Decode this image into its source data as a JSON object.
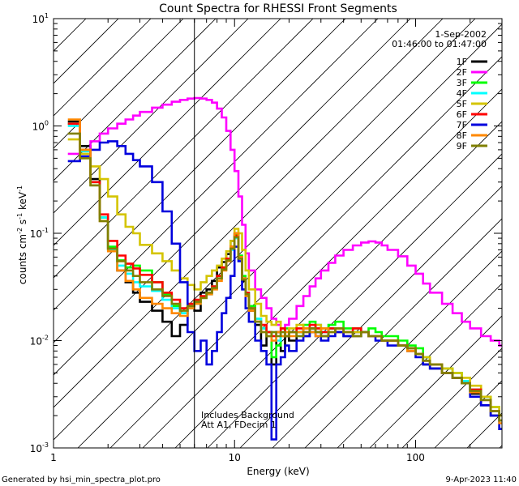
{
  "chart_data": {
    "type": "line",
    "title": "Count Spectra for RHESSI Front Segments",
    "xlabel": "Energy (keV)",
    "ylabel_main": "counts cm",
    "ylabel_exp1": "-2",
    "ylabel_mid": " s",
    "ylabel_exp2": "-1",
    "ylabel_end": " keV",
    "ylabel_exp3": "-1",
    "x_scale": "log",
    "y_scale": "log",
    "xlim": [
      1,
      300
    ],
    "ylim": [
      0.001,
      10
    ],
    "x_ticks": [
      {
        "value": 1,
        "label": "1"
      },
      {
        "value": 10,
        "label": "10"
      },
      {
        "value": 100,
        "label": "100"
      }
    ],
    "y_ticks": [
      {
        "value": 0.001,
        "mant": "10",
        "exp": "-3"
      },
      {
        "value": 0.01,
        "mant": "10",
        "exp": "-2"
      },
      {
        "value": 0.1,
        "mant": "10",
        "exp": "-1"
      },
      {
        "value": 1,
        "mant": "10",
        "exp": "0"
      },
      {
        "value": 10,
        "mant": "10",
        "exp": "1"
      }
    ],
    "date": "1-Sep-2002",
    "time_range": "01:46:00 to 01:47:00",
    "hatched_region": {
      "x_from": 1,
      "x_to": 6
    },
    "vertical_line_x": 6,
    "annotation_line1": "Includes Background",
    "annotation_line2": "Att A1, FDecim 1",
    "legend_position": "top-right",
    "energy_bins_keV": [
      1.2,
      1.4,
      1.6,
      1.8,
      2.0,
      2.25,
      2.5,
      2.75,
      3.0,
      3.5,
      4.0,
      4.5,
      5.0,
      5.5,
      6.0,
      6.5,
      7.0,
      7.5,
      8.0,
      8.5,
      9.0,
      9.5,
      10.0,
      10.5,
      11.0,
      11.5,
      12.0,
      13.0,
      14.0,
      15.0,
      16.0,
      17.0,
      18.0,
      19.0,
      20.0,
      22.0,
      24.0,
      26.0,
      28.0,
      30.0,
      33.0,
      36.0,
      40.0,
      45.0,
      50.0,
      55.0,
      60.0,
      65.0,
      70.0,
      80.0,
      90.0,
      100.0,
      110.0,
      120.0,
      140.0,
      160.0,
      180.0,
      200.0,
      230.0,
      260.0,
      290.0
    ],
    "series": [
      {
        "name": "1F",
        "color": "#000000",
        "values": [
          1.1,
          0.65,
          0.32,
          0.14,
          0.072,
          0.045,
          0.035,
          0.028,
          0.023,
          0.019,
          0.015,
          0.011,
          0.014,
          0.021,
          0.019,
          0.028,
          0.03,
          0.036,
          0.048,
          0.054,
          0.064,
          0.085,
          0.1,
          0.058,
          0.036,
          0.026,
          0.019,
          0.014,
          0.009,
          0.012,
          0.006,
          0.012,
          0.008,
          0.011,
          0.01,
          0.012,
          0.011,
          0.013,
          0.012,
          0.011,
          0.013,
          0.012,
          0.011,
          0.012,
          0.012,
          0.011,
          0.011,
          0.01,
          0.01,
          0.009,
          0.008,
          0.0075,
          0.006,
          0.0055,
          0.005,
          0.0045,
          0.004,
          0.0032,
          0.0025,
          0.002,
          0.0015
        ]
      },
      {
        "name": "2F",
        "color": "#ff00ff",
        "values": [
          0.55,
          0.6,
          0.72,
          0.85,
          0.95,
          1.05,
          1.15,
          1.25,
          1.35,
          1.48,
          1.58,
          1.68,
          1.75,
          1.8,
          1.82,
          1.8,
          1.75,
          1.65,
          1.45,
          1.2,
          0.9,
          0.6,
          0.38,
          0.22,
          0.12,
          0.065,
          0.045,
          0.03,
          0.025,
          0.02,
          0.016,
          0.014,
          0.013,
          0.014,
          0.016,
          0.021,
          0.026,
          0.032,
          0.038,
          0.045,
          0.053,
          0.062,
          0.07,
          0.077,
          0.082,
          0.084,
          0.082,
          0.077,
          0.07,
          0.061,
          0.05,
          0.042,
          0.034,
          0.028,
          0.022,
          0.018,
          0.015,
          0.013,
          0.011,
          0.01,
          0.009
        ]
      },
      {
        "name": "3F",
        "color": "#00ff00",
        "values": [
          1.05,
          0.6,
          0.3,
          0.14,
          0.075,
          0.056,
          0.048,
          0.05,
          0.045,
          0.035,
          0.027,
          0.021,
          0.018,
          0.021,
          0.023,
          0.025,
          0.028,
          0.032,
          0.04,
          0.048,
          0.058,
          0.075,
          0.098,
          0.062,
          0.04,
          0.028,
          0.021,
          0.016,
          0.013,
          0.012,
          0.007,
          0.009,
          0.011,
          0.013,
          0.012,
          0.012,
          0.014,
          0.015,
          0.013,
          0.012,
          0.014,
          0.015,
          0.013,
          0.013,
          0.012,
          0.013,
          0.012,
          0.011,
          0.011,
          0.01,
          0.009,
          0.0085,
          0.007,
          0.006,
          0.0055,
          0.005,
          0.0042,
          0.0035,
          0.003,
          0.0024,
          0.0018
        ]
      },
      {
        "name": "4F",
        "color": "#00ffff",
        "values": [
          1.0,
          0.58,
          0.28,
          0.14,
          0.07,
          0.05,
          0.042,
          0.035,
          0.032,
          0.029,
          0.024,
          0.02,
          0.018,
          0.02,
          0.022,
          0.025,
          0.027,
          0.031,
          0.038,
          0.046,
          0.056,
          0.07,
          0.09,
          0.058,
          0.038,
          0.028,
          0.02,
          0.016,
          0.013,
          0.011,
          0.012,
          0.01,
          0.012,
          0.011,
          0.012,
          0.011,
          0.013,
          0.012,
          0.014,
          0.012,
          0.013,
          0.012,
          0.012,
          0.011,
          0.012,
          0.011,
          0.011,
          0.01,
          0.01,
          0.009,
          0.0085,
          0.0075,
          0.0065,
          0.006,
          0.005,
          0.0045,
          0.0042,
          0.0035,
          0.0028,
          0.0022,
          0.0018
        ]
      },
      {
        "name": "5F",
        "color": "#d4c400",
        "values": [
          0.75,
          0.55,
          0.42,
          0.32,
          0.22,
          0.15,
          0.115,
          0.1,
          0.078,
          0.065,
          0.055,
          0.045,
          0.038,
          0.033,
          0.03,
          0.035,
          0.04,
          0.045,
          0.05,
          0.058,
          0.068,
          0.085,
          0.11,
          0.1,
          0.07,
          0.045,
          0.03,
          0.022,
          0.017,
          0.015,
          0.014,
          0.015,
          0.013,
          0.012,
          0.013,
          0.014,
          0.013,
          0.012,
          0.014,
          0.013,
          0.012,
          0.013,
          0.012,
          0.012,
          0.012,
          0.011,
          0.011,
          0.01,
          0.01,
          0.009,
          0.0085,
          0.0075,
          0.007,
          0.006,
          0.0055,
          0.005,
          0.0045,
          0.0038,
          0.003,
          0.0024,
          0.002
        ]
      },
      {
        "name": "6F",
        "color": "#ff0000",
        "values": [
          1.05,
          0.6,
          0.3,
          0.15,
          0.085,
          0.062,
          0.052,
          0.047,
          0.041,
          0.035,
          0.028,
          0.024,
          0.02,
          0.022,
          0.024,
          0.026,
          0.028,
          0.032,
          0.04,
          0.048,
          0.058,
          0.075,
          0.095,
          0.06,
          0.038,
          0.028,
          0.02,
          0.015,
          0.014,
          0.012,
          0.011,
          0.012,
          0.013,
          0.011,
          0.012,
          0.013,
          0.012,
          0.014,
          0.013,
          0.012,
          0.013,
          0.012,
          0.012,
          0.013,
          0.012,
          0.011,
          0.011,
          0.01,
          0.01,
          0.009,
          0.0085,
          0.0075,
          0.0065,
          0.006,
          0.005,
          0.0045,
          0.004,
          0.0035,
          0.0028,
          0.0022,
          0.0018
        ]
      },
      {
        "name": "7F",
        "color": "#0000dd",
        "values": [
          0.47,
          0.52,
          0.6,
          0.7,
          0.72,
          0.65,
          0.55,
          0.48,
          0.42,
          0.3,
          0.16,
          0.08,
          0.035,
          0.012,
          0.008,
          0.01,
          0.006,
          0.008,
          0.012,
          0.018,
          0.025,
          0.04,
          0.075,
          0.055,
          0.03,
          0.02,
          0.015,
          0.01,
          0.008,
          0.006,
          0.0012,
          0.006,
          0.007,
          0.009,
          0.008,
          0.01,
          0.011,
          0.012,
          0.011,
          0.01,
          0.011,
          0.012,
          0.011,
          0.011,
          0.012,
          0.011,
          0.01,
          0.01,
          0.009,
          0.009,
          0.008,
          0.007,
          0.006,
          0.0055,
          0.005,
          0.0045,
          0.004,
          0.003,
          0.0025,
          0.002,
          0.0015
        ]
      },
      {
        "name": "8F",
        "color": "#ff8800",
        "values": [
          1.15,
          0.6,
          0.28,
          0.13,
          0.068,
          0.045,
          0.036,
          0.03,
          0.025,
          0.022,
          0.02,
          0.018,
          0.017,
          0.02,
          0.022,
          0.025,
          0.027,
          0.03,
          0.036,
          0.045,
          0.055,
          0.075,
          0.1,
          0.06,
          0.038,
          0.026,
          0.019,
          0.015,
          0.012,
          0.011,
          0.01,
          0.012,
          0.011,
          0.012,
          0.011,
          0.012,
          0.013,
          0.012,
          0.011,
          0.013,
          0.012,
          0.013,
          0.012,
          0.011,
          0.012,
          0.011,
          0.011,
          0.01,
          0.01,
          0.009,
          0.008,
          0.0075,
          0.0065,
          0.006,
          0.005,
          0.0045,
          0.004,
          0.0033,
          0.0028,
          0.0022,
          0.0017
        ]
      },
      {
        "name": "9F",
        "color": "#808000",
        "values": [
          0.85,
          0.5,
          0.28,
          0.13,
          0.072,
          0.055,
          0.045,
          0.04,
          0.035,
          0.03,
          0.026,
          0.022,
          0.019,
          0.021,
          0.023,
          0.025,
          0.028,
          0.031,
          0.038,
          0.046,
          0.056,
          0.072,
          0.092,
          0.058,
          0.037,
          0.027,
          0.02,
          0.015,
          0.012,
          0.011,
          0.012,
          0.011,
          0.012,
          0.011,
          0.012,
          0.011,
          0.012,
          0.013,
          0.012,
          0.011,
          0.012,
          0.013,
          0.012,
          0.011,
          0.012,
          0.011,
          0.011,
          0.01,
          0.01,
          0.009,
          0.0085,
          0.0075,
          0.0065,
          0.006,
          0.005,
          0.0045,
          0.004,
          0.0034,
          0.0028,
          0.0022,
          0.0018
        ]
      }
    ]
  },
  "footer": {
    "generated_by": "Generated by hsi_min_spectra_plot.pro",
    "timestamp": "9-Apr-2023 11:40"
  }
}
